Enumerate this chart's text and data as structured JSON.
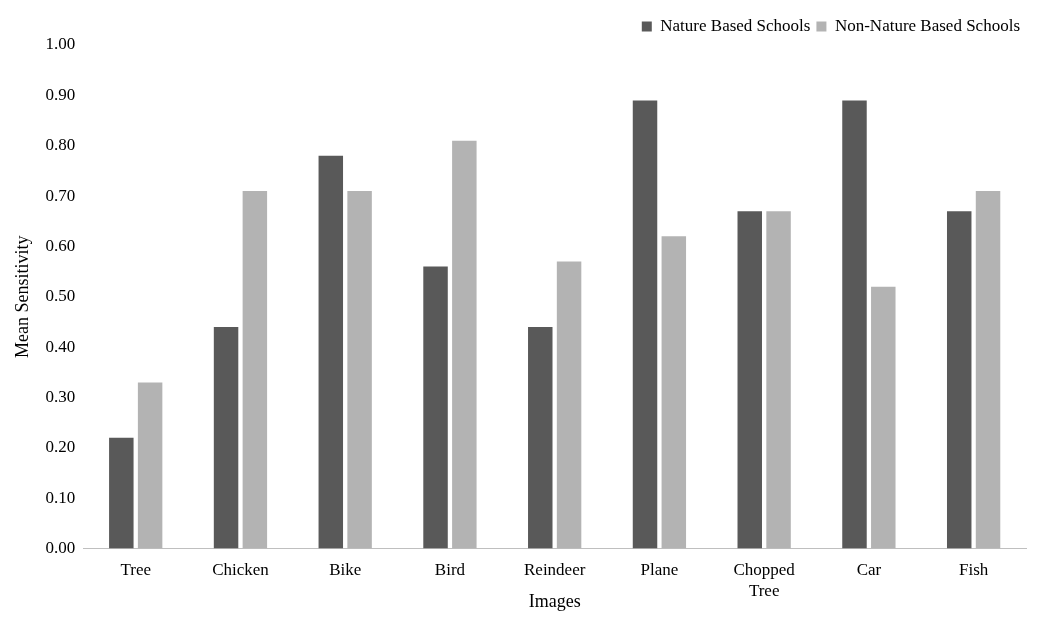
{
  "chart_data": {
    "type": "bar",
    "xlabel": "Images",
    "ylabel": "Mean Sensitivity",
    "categories": [
      "Tree",
      "Chicken",
      "Bike",
      "Bird",
      "Reindeer",
      "Plane",
      "Chopped Tree",
      "Car",
      "Fish"
    ],
    "series": [
      {
        "name": "Nature Based Schools",
        "color": "#595959",
        "values": [
          0.22,
          0.44,
          0.78,
          0.56,
          0.44,
          0.89,
          0.67,
          0.89,
          0.67
        ]
      },
      {
        "name": "Non-Nature Based Schools",
        "color": "#b3b3b3",
        "values": [
          0.33,
          0.71,
          0.71,
          0.81,
          0.57,
          0.62,
          0.67,
          0.52,
          0.71
        ]
      }
    ],
    "ylim": [
      0,
      1
    ],
    "yticks": [
      {
        "value": 0,
        "label": "0.00"
      },
      {
        "value": 0.1,
        "label": "0.10"
      },
      {
        "value": 0.2,
        "label": "0.20"
      },
      {
        "value": 0.3,
        "label": "0.30"
      },
      {
        "value": 0.4,
        "label": "0.40"
      },
      {
        "value": 0.5,
        "label": "0.50"
      },
      {
        "value": 0.6,
        "label": "0.60"
      },
      {
        "value": 0.7,
        "label": "0.70"
      },
      {
        "value": 0.8,
        "label": "0.80"
      },
      {
        "value": 0.9,
        "label": "0.90"
      },
      {
        "value": 1,
        "label": "1.00"
      }
    ],
    "grid": false,
    "legend": "top right"
  }
}
